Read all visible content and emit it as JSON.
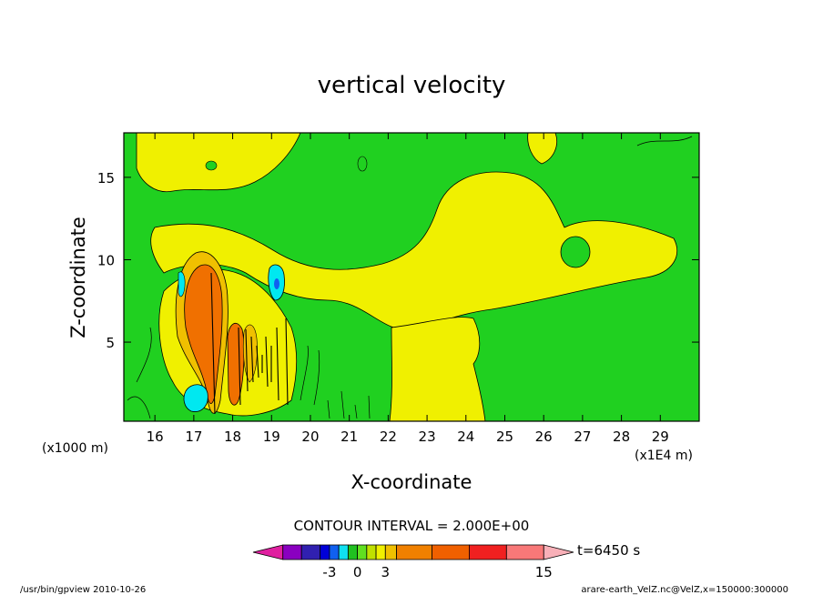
{
  "chart_data": {
    "type": "heatmap",
    "title": "vertical velocity",
    "xlabel": "X-coordinate",
    "ylabel": "Z-coordinate",
    "x_unit_label": "(x1E4 m)",
    "y_unit_label": "(x1000 m)",
    "xlim": [
      15.2,
      30.0
    ],
    "ylim": [
      0.2,
      17.7
    ],
    "x_ticks": [
      16,
      17,
      18,
      19,
      20,
      21,
      22,
      23,
      24,
      25,
      26,
      27,
      28,
      29
    ],
    "y_ticks": [
      5,
      10,
      15
    ],
    "contour_interval_label": "CONTOUR INTERVAL = 2.000E+00",
    "time_label": "t=6450 s",
    "colorbar": {
      "tick_labels": [
        {
          "label": "-3",
          "value": -3
        },
        {
          "label": "0",
          "value": 0
        },
        {
          "label": "3",
          "value": 3
        },
        {
          "label": "15",
          "value": 15
        }
      ],
      "colors": [
        "#e020a0",
        "#8a00c0",
        "#3020b0",
        "#0000d8",
        "#1060f0",
        "#10e0f0",
        "#20c020",
        "#60e020",
        "#c0e000",
        "#f0f000",
        "#f0c000",
        "#f08000",
        "#f06000",
        "#f02020",
        "#f87878",
        "#f8b0b8"
      ]
    },
    "regions": [
      {
        "name": "background",
        "color": "#20d020"
      },
      {
        "name": "upper-left yellow",
        "color": "#f0f000"
      },
      {
        "name": "mid yellow band",
        "color": "#f0f000"
      },
      {
        "name": "right yellow lobe",
        "color": "#f0f000"
      },
      {
        "name": "updraft core 16.5-17.5",
        "color": "#f07000"
      },
      {
        "name": "updraft cell 18",
        "color": "#f07000"
      },
      {
        "name": "downdraft 17",
        "color": "#00e8f0"
      },
      {
        "name": "downdraft 19",
        "color": "#00e8f0"
      },
      {
        "name": "downdraft 16.6",
        "color": "#00e8f0"
      }
    ]
  },
  "footer": {
    "left": "/usr/bin/gpview 2010-10-26",
    "right": "arare-earth_VelZ.nc@VelZ,x=150000:300000"
  }
}
